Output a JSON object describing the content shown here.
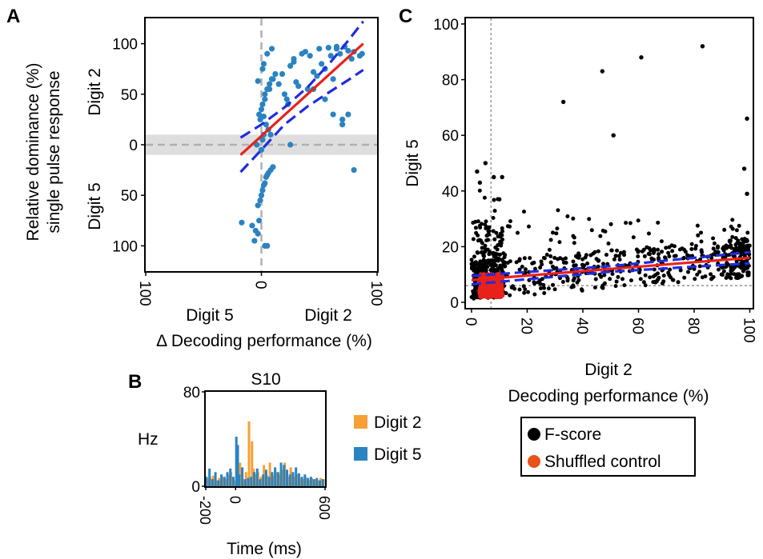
{
  "panels": {
    "a": {
      "letter": "A",
      "ylabel_line1": "Relative dominance (%)",
      "ylabel_line2": "single pulse response",
      "ylabel_top_group": "Digit 2",
      "ylabel_bottom_group": "Digit 5",
      "xlabel": "Δ Decoding performance (%)",
      "xlabel_left_group": "Digit 5",
      "xlabel_right_group": "Digit 2"
    },
    "b": {
      "letter": "B",
      "title": "S10",
      "ylabel": "Hz",
      "xlabel": "Time (ms)"
    },
    "c": {
      "letter": "C",
      "ylabel": "Digit 5",
      "xlabel_line1": "Digit 2",
      "xlabel_line2": "Decoding performance (%)"
    }
  },
  "chart_data": [
    {
      "id": "panel-a",
      "type": "scatter",
      "xlim": [
        -100,
        100
      ],
      "ylim": [
        -125,
        125
      ],
      "x_tick_labels": [
        {
          "value": -100,
          "label": "100"
        },
        {
          "value": 0,
          "label": "0"
        },
        {
          "value": 100,
          "label": "100"
        }
      ],
      "y_tick_labels": [
        {
          "value": 100,
          "label": "100"
        },
        {
          "value": 50,
          "label": "50"
        },
        {
          "value": 0,
          "label": "0"
        },
        {
          "value": -50,
          "label": "50"
        },
        {
          "value": -100,
          "label": "100"
        }
      ],
      "reference_lines": {
        "x": 0,
        "y": 0
      },
      "shaded_band_y": [
        -10,
        10
      ],
      "colors": {
        "points": "#2b83c1",
        "fit": "#e8221b",
        "ci": "#1f2de0",
        "reference": "#b0b0b0",
        "band": "#dedede"
      },
      "fit_line": {
        "x": [
          -18,
          88
        ],
        "y": [
          -10,
          100
        ]
      },
      "ci_upper": {
        "x": [
          -18,
          0,
          20,
          40,
          60,
          75,
          88
        ],
        "y": [
          7,
          20,
          37,
          57,
          82,
          103,
          122
        ]
      },
      "ci_lower": {
        "x": [
          -18,
          0,
          20,
          40,
          60,
          75,
          88
        ],
        "y": [
          -27,
          -5,
          20,
          38,
          53,
          64,
          74
        ]
      },
      "points": {
        "x": [
          -17,
          -8,
          -6,
          -5,
          -3,
          -2,
          -3,
          -1,
          0,
          1,
          2,
          3,
          4,
          5,
          6,
          8,
          10,
          -2,
          0,
          1,
          3,
          5,
          7,
          9,
          12,
          -1,
          2,
          4,
          6,
          8,
          -3,
          1,
          2,
          5,
          9,
          3,
          7,
          10,
          15,
          18,
          20,
          22,
          25,
          28,
          30,
          32,
          35,
          38,
          40,
          42,
          45,
          48,
          50,
          52,
          55,
          58,
          60,
          62,
          65,
          68,
          70,
          72,
          75,
          78,
          80,
          85,
          87,
          23,
          25,
          45,
          55,
          62,
          70,
          80,
          75,
          28,
          65,
          3,
          5,
          -4,
          0,
          2,
          6,
          1
        ],
        "y": [
          -77,
          -80,
          -95,
          -85,
          -88,
          -75,
          -60,
          -55,
          -50,
          -45,
          -40,
          -38,
          -32,
          -30,
          -28,
          -25,
          -22,
          30,
          35,
          40,
          45,
          55,
          60,
          65,
          70,
          25,
          28,
          20,
          15,
          10,
          63,
          75,
          80,
          90,
          95,
          50,
          55,
          65,
          60,
          70,
          50,
          45,
          78,
          85,
          62,
          58,
          90,
          92,
          55,
          88,
          72,
          68,
          95,
          80,
          75,
          96,
          88,
          65,
          97,
          90,
          20,
          97,
          93,
          85,
          92,
          88,
          90,
          40,
          0,
          55,
          45,
          30,
          25,
          -25,
          30,
          82,
          95,
          -100,
          -100,
          0,
          -5,
          10,
          15,
          5
        ]
      }
    },
    {
      "id": "panel-b",
      "type": "bar",
      "title": "S10",
      "xlim": [
        -200,
        600
      ],
      "ylim": [
        0,
        80
      ],
      "x_tick_labels": [
        {
          "value": -200,
          "label": "-200"
        },
        {
          "value": 0,
          "label": "0"
        },
        {
          "value": 600,
          "label": "600"
        }
      ],
      "y_tick_labels": [
        {
          "value": 0,
          "label": "0"
        },
        {
          "value": 80,
          "label": "80"
        }
      ],
      "legend_placement": "right",
      "series": [
        {
          "name": "Digit 2",
          "color": "#f6a035",
          "x": [
            -190,
            -170,
            -150,
            -130,
            -110,
            -90,
            -70,
            -50,
            -30,
            -10,
            10,
            30,
            50,
            70,
            90,
            110,
            120,
            130,
            150,
            170,
            190,
            210,
            230,
            250,
            270,
            290,
            310,
            330,
            350,
            370,
            390,
            410,
            430,
            450,
            470,
            490,
            510,
            530,
            550,
            570,
            590
          ],
          "values": [
            6,
            8,
            9,
            5,
            7,
            8,
            6,
            10,
            12,
            5,
            8,
            20,
            6,
            12,
            55,
            38,
            15,
            10,
            12,
            8,
            18,
            9,
            20,
            9,
            12,
            10,
            14,
            20,
            8,
            16,
            8,
            10,
            7,
            6,
            8,
            5,
            7,
            6,
            5,
            7,
            6
          ]
        },
        {
          "name": "Digit 5",
          "color": "#2b83c1",
          "x": [
            -195,
            -175,
            -155,
            -135,
            -115,
            -95,
            -75,
            -55,
            -35,
            -15,
            5,
            15,
            25,
            45,
            65,
            85,
            105,
            125,
            145,
            165,
            185,
            205,
            225,
            245,
            265,
            285,
            305,
            325,
            345,
            365,
            385,
            405,
            425,
            445,
            465,
            485,
            505,
            525,
            545,
            565,
            585
          ],
          "values": [
            8,
            15,
            6,
            12,
            5,
            10,
            8,
            12,
            15,
            8,
            42,
            35,
            10,
            16,
            6,
            7,
            8,
            12,
            15,
            6,
            10,
            14,
            8,
            12,
            16,
            12,
            20,
            18,
            14,
            10,
            12,
            16,
            11,
            8,
            10,
            7,
            8,
            6,
            7,
            5,
            6
          ]
        }
      ]
    },
    {
      "id": "panel-c",
      "type": "scatter",
      "xlim": [
        -2,
        101
      ],
      "ylim": [
        -2,
        102
      ],
      "x_ticks": [
        0,
        20,
        40,
        60,
        80,
        100
      ],
      "y_ticks": [
        0,
        20,
        40,
        60,
        80,
        100
      ],
      "reference_lines": {
        "x": 7,
        "y": 6
      },
      "colors": {
        "fscore": "#000000",
        "shuffled": "#e8221b",
        "fit": "#e8221b",
        "ci": "#1f2de0",
        "reference": "#999999"
      },
      "fit_line": {
        "x": [
          0,
          100
        ],
        "y": [
          8,
          16
        ]
      },
      "ci_upper": {
        "x": [
          0,
          50,
          100
        ],
        "y": [
          9.5,
          13,
          18
        ]
      },
      "ci_lower": {
        "x": [
          0,
          50,
          100
        ],
        "y": [
          6.5,
          11,
          14
        ]
      },
      "highlight_points": {
        "x": [
          83,
          61,
          47,
          33,
          51,
          99,
          98,
          99,
          5,
          2,
          3,
          8,
          10,
          11
        ],
        "y": [
          92,
          88,
          83,
          72,
          60,
          66,
          48,
          39,
          50,
          47,
          43,
          45,
          37,
          45
        ]
      },
      "legend_placement": "bottom",
      "legend": [
        {
          "name": "F-score",
          "color": "#000000"
        },
        {
          "name": "Shuffled control",
          "color": "#e8521b"
        }
      ]
    }
  ]
}
